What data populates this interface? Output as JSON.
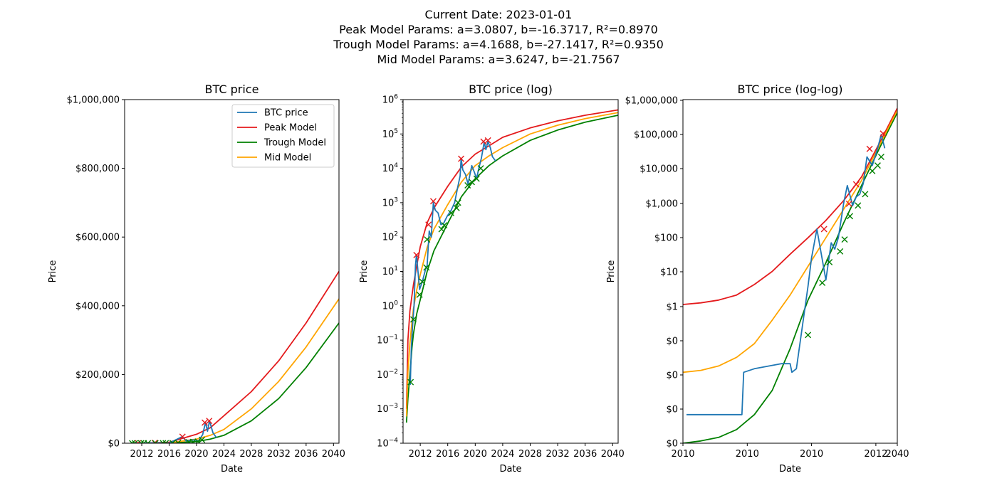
{
  "suptitle": {
    "line1": "Current Date: 2023-01-01",
    "line2": "Peak Model Params: a=3.0807, b=-16.3717, R²=0.8970",
    "line3": "Trough Model Params: a=4.1688, b=-27.1417, R²=0.9350",
    "line4": "Mid Model Params: a=3.6247, b=-21.7567"
  },
  "colors": {
    "btc": "#1f77b4",
    "peak": "#e41a1c",
    "trough": "#008000",
    "mid": "#ffa500"
  },
  "chart_data": [
    {
      "type": "line",
      "title": "BTC price",
      "xlabel": "Date",
      "ylabel": "Price",
      "yscale": "linear",
      "xlim": [
        2009.5,
        2040.8
      ],
      "ylim": [
        0,
        1000000
      ],
      "x_ticks": [
        "2012",
        "2016",
        "2020",
        "2024",
        "2028",
        "2032",
        "2036",
        "2040"
      ],
      "y_ticks": [
        "$0",
        "$200,000",
        "$400,000",
        "$600,000",
        "$800,000",
        "$1,000,000"
      ],
      "legend": {
        "position": "upper-right",
        "entries": [
          "BTC price",
          "Peak Model",
          "Trough Model",
          "Mid Model"
        ]
      },
      "series": [
        {
          "name": "BTC price",
          "x": [
            2010.5,
            2011.5,
            2013.9,
            2016.0,
            2017.9,
            2018.5,
            2019.5,
            2020.3,
            2020.9,
            2021.3,
            2021.6,
            2021.9,
            2022.4,
            2022.9
          ],
          "y": [
            0.1,
            30,
            1000,
            400,
            19000,
            7000,
            10000,
            7000,
            25000,
            60000,
            35000,
            65000,
            30000,
            16500
          ]
        },
        {
          "name": "Peak Model",
          "x": [
            2012,
            2016,
            2020,
            2022,
            2024,
            2028,
            2032,
            2036,
            2040.8
          ],
          "y": [
            52,
            3000,
            26000,
            45000,
            80000,
            150000,
            240000,
            350000,
            500000
          ]
        },
        {
          "name": "Trough Model",
          "x": [
            2012,
            2016,
            2020,
            2022,
            2024,
            2028,
            2032,
            2036,
            2040.8
          ],
          "y": [
            1,
            250,
            5000,
            12000,
            23000,
            65000,
            130000,
            220000,
            350000
          ]
        },
        {
          "name": "Mid Model",
          "x": [
            2012,
            2016,
            2020,
            2022,
            2024,
            2028,
            2032,
            2036,
            2040.8
          ],
          "y": [
            8,
            880,
            12000,
            23000,
            40000,
            100000,
            180000,
            280000,
            420000
          ]
        }
      ],
      "peak_markers": {
        "x": [
          2011.45,
          2013.9,
          2017.95,
          2021.2,
          2021.85
        ],
        "y": [
          30,
          1100,
          19000,
          60000,
          65000
        ]
      },
      "trough_markers": {
        "x": [
          2010.6,
          2011.0,
          2011.9,
          2012.3,
          2012.9,
          2014.0,
          2015.1,
          2015.5,
          2016.5,
          2017.3,
          2018.9,
          2019.5,
          2020.2,
          2020.8
        ],
        "y": [
          0.006,
          0.4,
          2.1,
          5,
          13,
          85,
          170,
          220,
          500,
          900,
          3200,
          4000,
          5000,
          10000
        ]
      }
    },
    {
      "type": "line",
      "title": "BTC price (log)",
      "xlabel": "Date",
      "ylabel": "Price",
      "yscale": "log",
      "xlim": [
        2009.5,
        2040.8
      ],
      "ylim": [
        0.0001,
        1000000
      ],
      "x_ticks": [
        "2012",
        "2016",
        "2020",
        "2024",
        "2028",
        "2032",
        "2036",
        "2040"
      ],
      "y_ticks": [
        "10",
        "10",
        "10",
        "10",
        "10",
        "10",
        "10",
        "10",
        "10",
        "10",
        "10"
      ],
      "y_tick_exponents": [
        "−4",
        "−3",
        "−2",
        "−1",
        "0",
        "1",
        "2",
        "3",
        "4",
        "5",
        "6"
      ],
      "series": [
        {
          "name": "BTC price",
          "x": [
            2010.55,
            2010.7,
            2010.9,
            2011.1,
            2011.3,
            2011.45,
            2011.6,
            2011.9,
            2012.3,
            2012.8,
            2013.0,
            2013.3,
            2013.6,
            2013.9,
            2014.2,
            2014.6,
            2015.0,
            2015.4,
            2015.9,
            2016.5,
            2017.0,
            2017.4,
            2017.8,
            2017.95,
            2018.2,
            2018.6,
            2018.95,
            2019.5,
            2019.9,
            2020.2,
            2020.5,
            2020.9,
            2021.3,
            2021.55,
            2021.85,
            2022.2,
            2022.5,
            2022.95
          ],
          "y": [
            0.005,
            0.06,
            0.3,
            1,
            15,
            30,
            14,
            3,
            5,
            12,
            15,
            150,
            100,
            1000,
            600,
            500,
            230,
            250,
            400,
            600,
            1000,
            2500,
            6000,
            19000,
            9000,
            6500,
            3500,
            12000,
            7500,
            5000,
            9500,
            20000,
            58000,
            35000,
            60000,
            40000,
            22000,
            16500
          ]
        },
        {
          "name": "Peak Model",
          "x": [
            2010.0,
            2010.2,
            2010.5,
            2010.8,
            2011.0,
            2011.5,
            2012,
            2013,
            2014,
            2016,
            2018,
            2020,
            2022,
            2024,
            2028,
            2032,
            2036,
            2040.8
          ],
          "y": [
            0.001,
            0.1,
            0.7,
            2,
            4,
            15,
            52,
            260,
            700,
            3000,
            11000,
            26000,
            45000,
            80000,
            150000,
            240000,
            350000,
            500000
          ]
        },
        {
          "name": "Trough Model",
          "x": [
            2010.0,
            2010.2,
            2010.5,
            2010.8,
            2011.0,
            2011.5,
            2012,
            2013,
            2014,
            2016,
            2018,
            2020,
            2022,
            2024,
            2028,
            2032,
            2036,
            2040.8
          ],
          "y": [
            0.0004,
            0.002,
            0.01,
            0.06,
            0.15,
            0.6,
            1.5,
            10,
            40,
            250,
            1500,
            5000,
            12000,
            23000,
            65000,
            130000,
            220000,
            350000
          ]
        },
        {
          "name": "Mid Model",
          "x": [
            2010.0,
            2010.2,
            2010.5,
            2010.8,
            2011.0,
            2011.5,
            2012,
            2013,
            2014,
            2016,
            2018,
            2020,
            2022,
            2024,
            2028,
            2032,
            2036,
            2040.8
          ],
          "y": [
            0.0006,
            0.012,
            0.08,
            0.35,
            0.8,
            3,
            8,
            50,
            170,
            880,
            4000,
            12000,
            23000,
            40000,
            100000,
            180000,
            280000,
            420000
          ]
        }
      ],
      "peak_markers": {
        "x": [
          2011.45,
          2013.2,
          2013.9,
          2017.95,
          2021.2,
          2021.85
        ],
        "y": [
          30,
          230,
          1100,
          19000,
          60000,
          65000
        ]
      },
      "trough_markers": {
        "x": [
          2010.6,
          2011.0,
          2011.9,
          2012.3,
          2012.9,
          2013.0,
          2015.1,
          2015.5,
          2016.5,
          2017.3,
          2017.5,
          2018.9,
          2019.5,
          2020.2,
          2020.8
        ],
        "y": [
          0.006,
          0.4,
          2.1,
          5,
          13,
          85,
          170,
          220,
          500,
          700,
          1000,
          3200,
          4000,
          5000,
          10000
        ]
      }
    },
    {
      "type": "line",
      "title": "BTC price (log-log)",
      "xlabel": "Date",
      "ylabel": "Price",
      "yscale": "log",
      "xscale": "log",
      "x_ticks": [
        "2010",
        "2010",
        "2010",
        "2012",
        "2040"
      ],
      "y_ticks": [
        "$0",
        "$0",
        "$0",
        "$0",
        "$1",
        "$10",
        "$100",
        "$1,000",
        "$10,000",
        "$100,000",
        "$1,000,000"
      ],
      "note": "tick labels are the figure's own printed labels",
      "series": [
        {
          "name": "BTC price",
          "x": [
            0.2,
            3.3,
            3.4,
            4.0,
            5.5,
            6.0,
            6.1,
            6.35,
            7.0,
            7.2,
            7.5,
            8.0,
            8.3,
            8.5,
            8.7,
            9.0,
            9.2,
            9.5,
            9.7,
            9.9,
            10.1,
            10.3,
            10.6,
            10.9,
            11.1,
            11.3
          ],
          "y": [
            1e-05,
            1e-05,
            0.0003,
            0.0004,
            0.0006,
            0.0006,
            0.0003,
            0.0004,
            0.3,
            3,
            30,
            0.5,
            10,
            6,
            15,
            250,
            1000,
            200,
            400,
            500,
            1200,
            10000,
            5000,
            20000,
            60000,
            20000
          ]
        },
        {
          "name": "Peak Model",
          "x": [
            0,
            1,
            2,
            3,
            4,
            5,
            6,
            7,
            8,
            9,
            10,
            11,
            12
          ],
          "y": [
            0.07,
            0.08,
            0.1,
            0.15,
            0.35,
            1,
            4,
            15,
            60,
            300,
            2000,
            30000,
            500000
          ]
        },
        {
          "name": "Trough Model",
          "x": [
            0,
            1,
            2,
            3,
            4,
            5,
            6,
            7,
            8,
            9,
            10,
            11,
            12
          ],
          "y": [
            1e-06,
            1.2e-06,
            1.6e-06,
            3e-06,
            1e-05,
            7e-05,
            0.002,
            0.1,
            2,
            50,
            1000,
            20000,
            350000
          ]
        },
        {
          "name": "Mid Model",
          "x": [
            0,
            1,
            2,
            3,
            4,
            5,
            6,
            7,
            8,
            9,
            10,
            11,
            12
          ],
          "y": [
            0.0003,
            0.00035,
            0.0005,
            0.001,
            0.003,
            0.02,
            0.15,
            1.5,
            15,
            150,
            1500,
            25000,
            420000
          ]
        }
      ],
      "peak_markers": {
        "x": [
          7.9,
          9.3,
          9.7,
          10.45,
          11.2
        ],
        "y": [
          30,
          230,
          1100,
          19000,
          65000
        ]
      },
      "trough_markers": {
        "x": [
          7.0,
          7.8,
          8.2,
          8.8,
          9.05,
          9.35,
          9.8,
          10.2,
          10.6,
          10.9,
          11.1
        ],
        "y": [
          0.006,
          0.4,
          2.1,
          5,
          13,
          85,
          200,
          500,
          3200,
          5000,
          10000
        ]
      }
    }
  ]
}
